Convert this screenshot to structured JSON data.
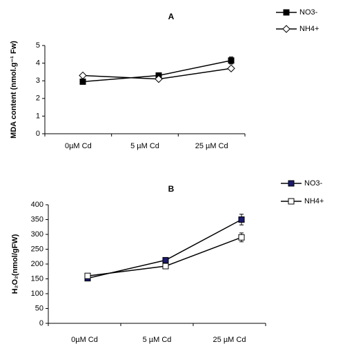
{
  "chart_data": [
    {
      "type": "line",
      "title": "A",
      "y_label": "MDA content (nmol.g⁻¹ Fw)",
      "categories": [
        "0µM Cd",
        "5 µM Cd",
        "25 µM Cd"
      ],
      "ylim": [
        0,
        5
      ],
      "yticks": [
        0,
        1,
        2,
        3,
        4,
        5
      ],
      "series": [
        {
          "name": "NO3-",
          "color": "#000000",
          "marker": "square",
          "marker_fill": "#000000",
          "values": [
            2.95,
            3.3,
            4.15
          ],
          "errors": [
            0.05,
            0.05,
            0.2
          ]
        },
        {
          "name": "NH4+",
          "color": "#000000",
          "marker": "diamond",
          "marker_fill": "#ffffff",
          "values": [
            3.3,
            3.1,
            3.7
          ],
          "errors": [
            0.05,
            0.05,
            0.1
          ]
        }
      ]
    },
    {
      "type": "line",
      "title": "B",
      "y_label": "H₂O₂(nmol/gFW)",
      "categories": [
        "0µM Cd",
        "5 µM Cd",
        "25 µM Cd"
      ],
      "ylim": [
        0,
        400
      ],
      "yticks": [
        0,
        50,
        100,
        150,
        200,
        250,
        300,
        350,
        400
      ],
      "series": [
        {
          "name": "NO3-",
          "color": "#000000",
          "marker": "square",
          "marker_fill": "#1a1a6e",
          "values": [
            152,
            213,
            350
          ],
          "errors": [
            5,
            8,
            18
          ]
        },
        {
          "name": "NH4+",
          "color": "#000000",
          "marker": "square",
          "marker_fill": "#ffffff",
          "values": [
            160,
            193,
            290
          ],
          "errors": [
            5,
            5,
            15
          ]
        }
      ]
    }
  ]
}
